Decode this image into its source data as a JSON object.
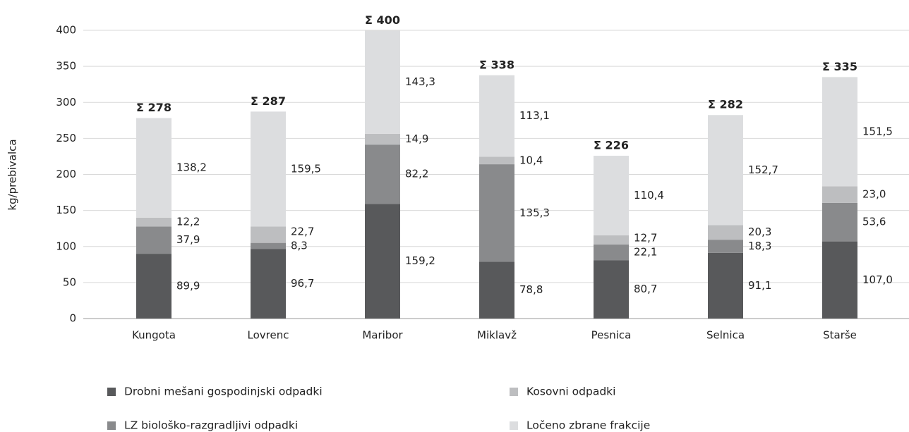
{
  "chart_data": {
    "type": "stacked_bar",
    "ylabel": "kg/prebivalca",
    "categories": [
      "Kungota",
      "Lovrenc",
      "Maribor",
      "Miklavž",
      "Pesnica",
      "Selnica",
      "Starše"
    ],
    "series": [
      {
        "name": "Drobni mešani gospodinjski odpadki",
        "color": "#58595b",
        "values": [
          89.9,
          96.7,
          159.2,
          78.8,
          80.7,
          91.1,
          107.0
        ],
        "value_labels": [
          "89,9",
          "96,7",
          "159,2",
          "78,8",
          "80,7",
          "91,1",
          "107,0"
        ]
      },
      {
        "name": "LZ biološko-razgradljivi odpadki",
        "color": "#898a8c",
        "values": [
          37.9,
          8.3,
          82.2,
          135.3,
          22.1,
          18.3,
          53.6
        ],
        "value_labels": [
          "37,9",
          "8,3",
          "82,2",
          "135,3",
          "22,1",
          "18,3",
          "53,6"
        ]
      },
      {
        "name": "Kosovni odpadki",
        "color": "#bdbec0",
        "values": [
          12.2,
          22.7,
          14.9,
          10.4,
          12.7,
          20.3,
          23.0
        ],
        "value_labels": [
          "12,2",
          "22,7",
          "14,9",
          "10,4",
          "12,7",
          "20,3",
          "23,0"
        ]
      },
      {
        "name": "Ločeno zbrane frakcije",
        "color": "#dcdddf",
        "values": [
          138.2,
          159.5,
          143.3,
          113.1,
          110.4,
          152.7,
          151.5
        ],
        "value_labels": [
          "138,2",
          "159,5",
          "143,3",
          "113,1",
          "110,4",
          "152,7",
          "151,5"
        ]
      }
    ],
    "totals": [
      278,
      287,
      400,
      338,
      226,
      282,
      335
    ],
    "total_labels": [
      "Σ 278",
      "Σ 287",
      "Σ 400",
      "Σ 338",
      "Σ 226",
      "Σ 282",
      "Σ 335"
    ],
    "ylim": [
      0,
      400
    ],
    "yticks": [
      0,
      50,
      100,
      150,
      200,
      250,
      300,
      350,
      400
    ],
    "grid": true,
    "legend": "bottom"
  }
}
